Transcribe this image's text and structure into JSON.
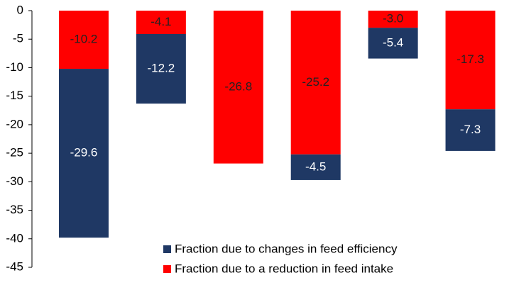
{
  "chart_data": {
    "type": "stacked-bar",
    "categories": [
      null,
      null,
      null,
      null,
      null,
      null
    ],
    "series": [
      {
        "name": "Fraction due to changes in feed efficiency",
        "color": "#1f3864",
        "label_color": "#ffffff",
        "values": [
          -29.6,
          -12.2,
          null,
          -4.5,
          -5.4,
          -7.3
        ]
      },
      {
        "name": "Fraction due to a reduction in feed intake",
        "color": "#ff0000",
        "label_color": "#222222",
        "values": [
          -10.2,
          -4.1,
          -26.8,
          -25.2,
          -3.0,
          -17.3
        ],
        "value_labels": [
          "-10.2",
          "-4.1",
          "-26.8",
          "-25.2",
          "-3.0",
          "-17.3"
        ]
      }
    ],
    "ylim": [
      -45,
      0
    ],
    "yticks": [
      0,
      -5,
      -10,
      -15,
      -20,
      -25,
      -30,
      -35,
      -40,
      -45
    ]
  }
}
